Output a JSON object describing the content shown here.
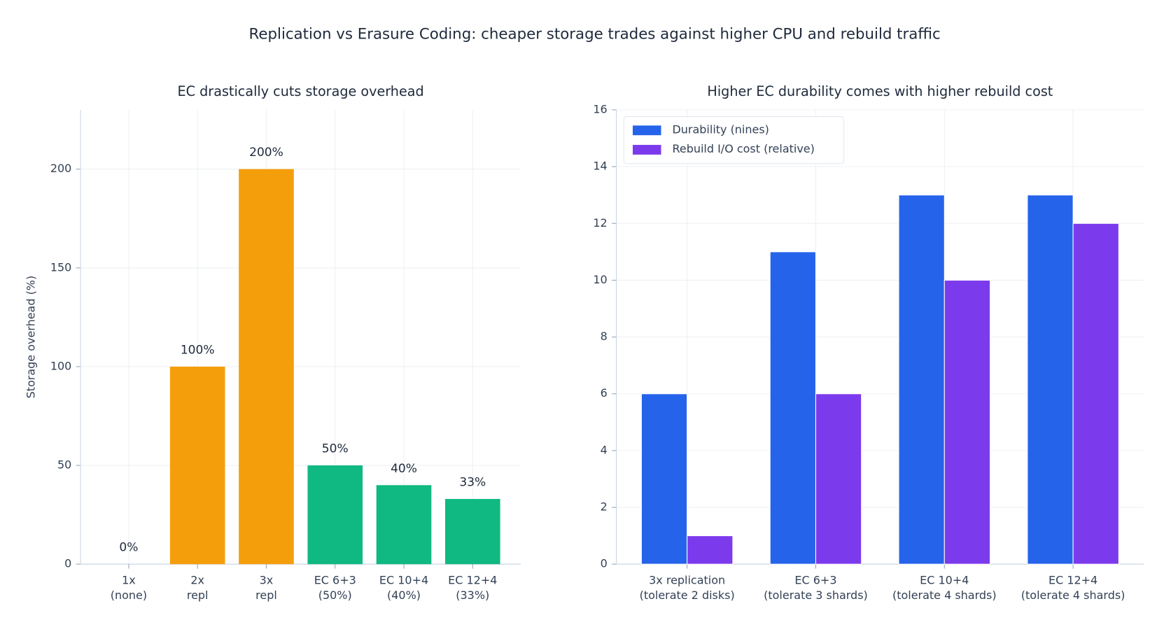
{
  "title": "Replication vs Erasure Coding: cheaper storage trades against higher CPU and rebuild traffic",
  "chart_data": [
    {
      "type": "bar",
      "title": "EC drastically cuts storage overhead",
      "ylabel": "Storage overhead (%)",
      "categories": [
        [
          "1x",
          "(none)"
        ],
        [
          "2x",
          "repl"
        ],
        [
          "3x",
          "repl"
        ],
        [
          "EC 6+3",
          "(50%)"
        ],
        [
          "EC 10+4",
          "(40%)"
        ],
        [
          "EC 12+4",
          "(33%)"
        ]
      ],
      "values": [
        0,
        100,
        200,
        50,
        40,
        33
      ],
      "value_labels": [
        "0%",
        "100%",
        "200%",
        "50%",
        "40%",
        "33%"
      ],
      "colors": [
        "#94a3b8",
        "#f59e0b",
        "#f59e0b",
        "#10b981",
        "#10b981",
        "#10b981"
      ],
      "ylim": [
        0,
        230
      ],
      "yticks": [
        0,
        50,
        100,
        150,
        200
      ],
      "grid": true
    },
    {
      "type": "grouped-bar",
      "title": "Higher EC durability comes with higher rebuild cost",
      "categories": [
        [
          "3x replication",
          "(tolerate 2 disks)"
        ],
        [
          "EC 6+3",
          "(tolerate 3 shards)"
        ],
        [
          "EC 10+4",
          "(tolerate 4 shards)"
        ],
        [
          "EC 12+4",
          "(tolerate 4 shards)"
        ]
      ],
      "series": [
        {
          "name": "Durability (nines)",
          "color": "#2563eb",
          "values": [
            6,
            11,
            13,
            13
          ]
        },
        {
          "name": "Rebuild I/O cost (relative)",
          "color": "#7c3aed",
          "values": [
            1,
            6,
            10,
            12
          ]
        }
      ],
      "ylim": [
        0,
        16
      ],
      "yticks": [
        0,
        2,
        4,
        6,
        8,
        10,
        12,
        14,
        16
      ],
      "grid": true,
      "legend": "upper left"
    }
  ]
}
